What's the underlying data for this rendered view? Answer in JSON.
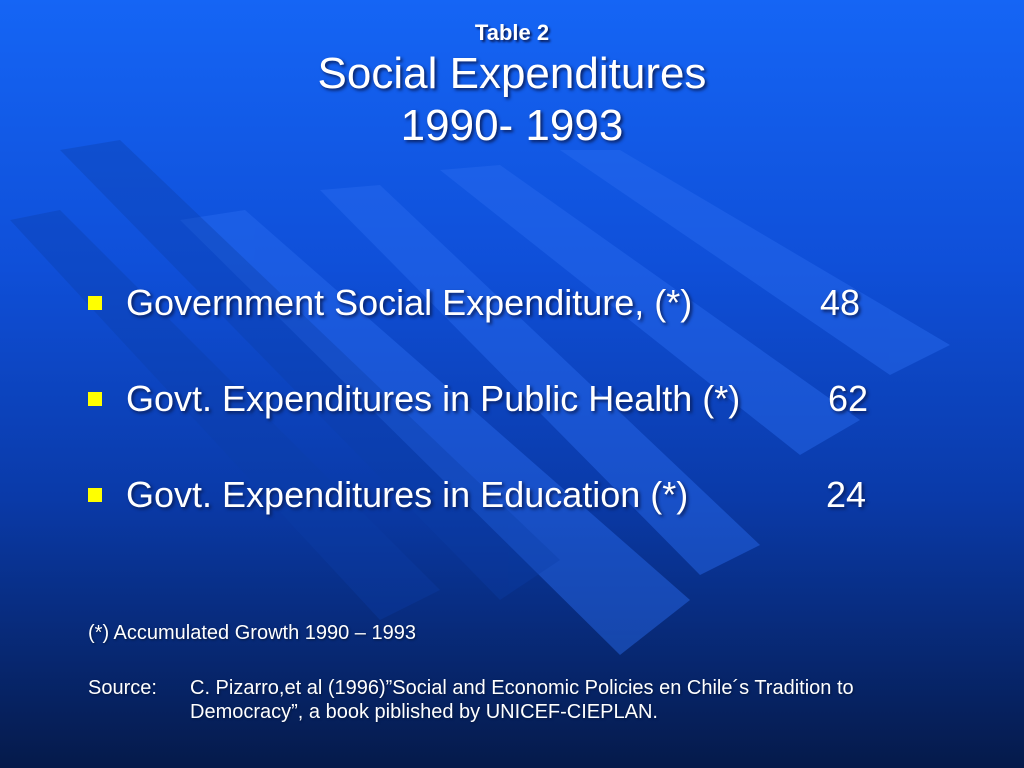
{
  "title": {
    "table_label": "Table 2",
    "line1": "Social Expenditures",
    "line2": "1990- 1993"
  },
  "bullets": [
    {
      "label": "Government Social Expenditure, (*)",
      "value": "48"
    },
    {
      "label": "Govt. Expenditures in Public Health (*)",
      "value": "62"
    },
    {
      "label": "Govt. Expenditures in Education (*)",
      "value": "24"
    }
  ],
  "note": "(*) Accumulated Growth 1990 – 1993",
  "source": {
    "label": "Source:",
    "text": "C. Pizarro,et al  (1996)”Social and Economic Policies en Chile´s Tradition to Democracy”, a book piblished by UNICEF-CIEPLAN."
  },
  "colors": {
    "background_top": "#1565f5",
    "background_bottom": "#051a4a",
    "bullet": "#ffff00",
    "text": "#ffffff"
  }
}
